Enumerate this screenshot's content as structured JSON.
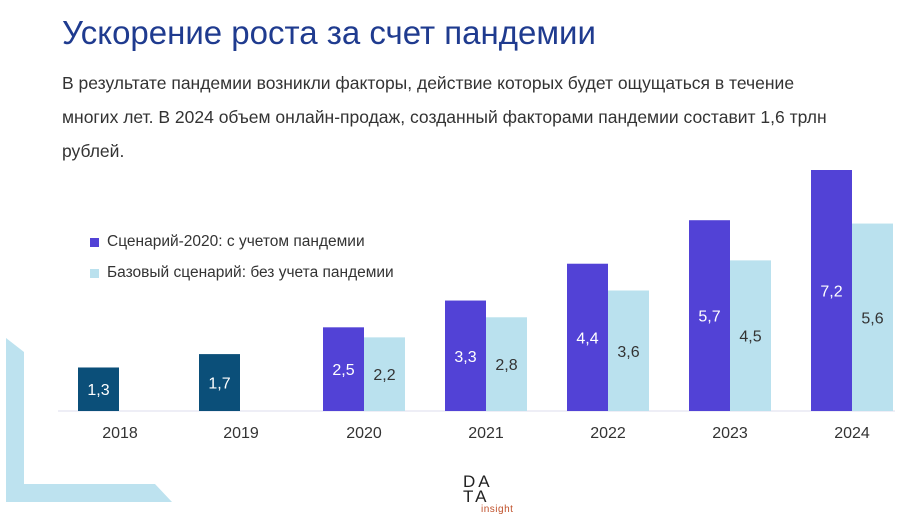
{
  "title": "Ускорение роста за счет пандемии",
  "subtitle": "В результате пандемии возникли факторы, действие которых будет ощущаться в течение многих лет. В 2024 объем онлайн-продаж, созданный факторами пандемии составит 1,6 трлн рублей.",
  "logo": {
    "line1": "DA",
    "line2": "TA",
    "line3": "insight"
  },
  "chart_data": {
    "type": "bar",
    "categories": [
      "2018",
      "2019",
      "2020",
      "2021",
      "2022",
      "2023",
      "2024"
    ],
    "historical": {
      "values": [
        1.3,
        1.7,
        null,
        null,
        null,
        null,
        null
      ],
      "color": "#0b4f79"
    },
    "series": [
      {
        "name": "Сценарий-2020: с учетом пандемии",
        "values": [
          null,
          null,
          2.5,
          3.3,
          4.4,
          5.7,
          7.2
        ],
        "color": "#5242d6"
      },
      {
        "name": "Базовый сценарий: без учета пандемии",
        "values": [
          null,
          null,
          2.2,
          2.8,
          3.6,
          4.5,
          5.6
        ],
        "color": "#bae1ee"
      }
    ],
    "labels": {
      "historical": [
        "1,3",
        "1,7"
      ],
      "s0": [
        "2,5",
        "3,3",
        "4,4",
        "5,7",
        "7,2"
      ],
      "s1": [
        "2,2",
        "2,8",
        "3,6",
        "4,5",
        "5,6"
      ]
    },
    "ylim": [
      0,
      7.2
    ],
    "grid": false,
    "legend": "top-left"
  }
}
